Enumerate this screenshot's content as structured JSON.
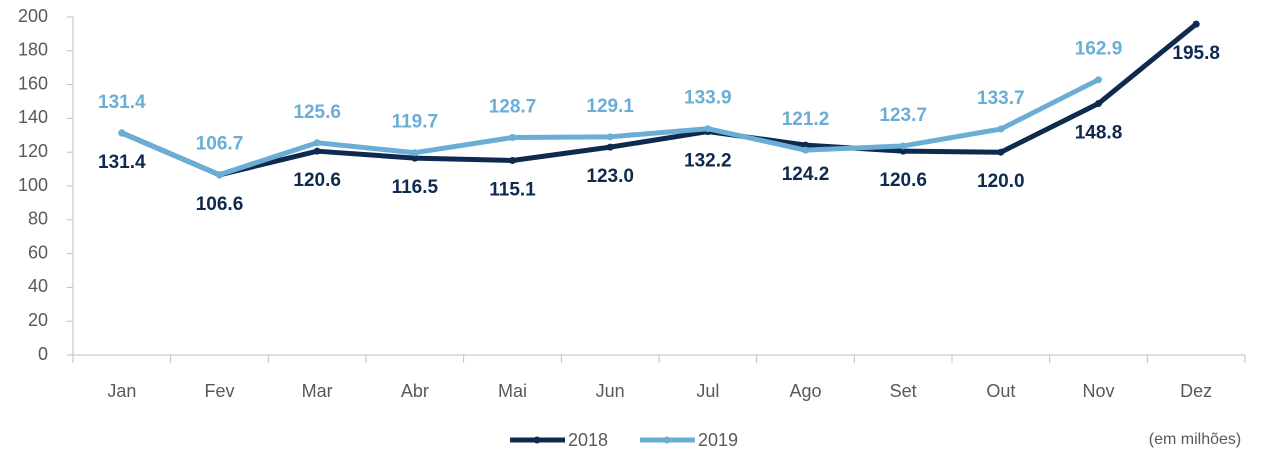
{
  "chart_data": {
    "type": "line",
    "categories": [
      "Jan",
      "Fev",
      "Mar",
      "Abr",
      "Mai",
      "Jun",
      "Jul",
      "Ago",
      "Set",
      "Out",
      "Nov",
      "Dez"
    ],
    "series": [
      {
        "name": "2018",
        "color": "#0e2a4f",
        "values": [
          131.4,
          106.6,
          120.6,
          116.5,
          115.1,
          123.0,
          132.2,
          124.2,
          120.6,
          120.0,
          148.8,
          195.8
        ],
        "value_labels": [
          "131.4",
          "106.6",
          "120.6",
          "116.5",
          "115.1",
          "123.0",
          "132.2",
          "124.2",
          "120.6",
          "120.0",
          "148.8",
          "195.8"
        ]
      },
      {
        "name": "2019",
        "color": "#6aaed6",
        "values": [
          131.4,
          106.7,
          125.6,
          119.7,
          128.7,
          129.1,
          133.9,
          121.2,
          123.7,
          133.7,
          162.9,
          null
        ]
      }
    ],
    "ylim": [
      0,
      200
    ],
    "yticks": [
      0,
      20,
      40,
      60,
      80,
      100,
      120,
      140,
      160,
      180,
      200
    ],
    "annotation": "(em milhões)",
    "grid": false
  }
}
